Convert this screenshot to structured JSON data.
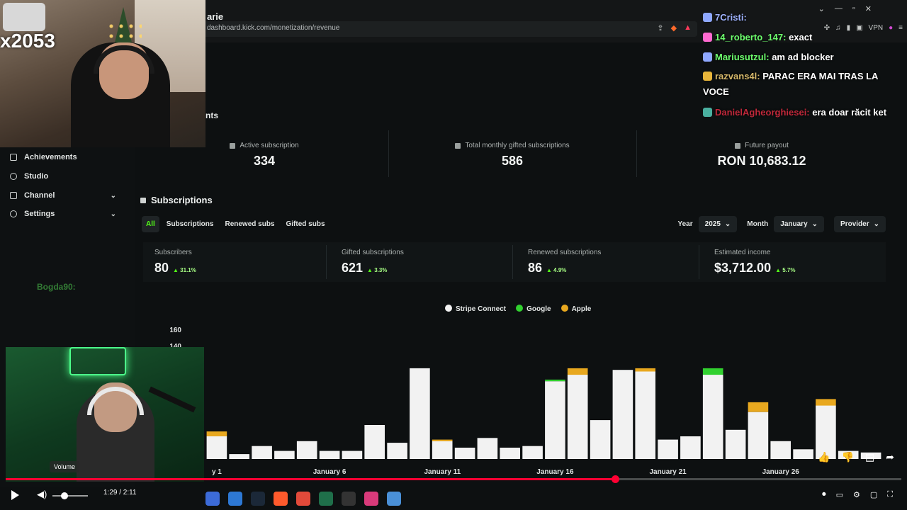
{
  "browser": {
    "url": "dashboard.kick.com/monetization/revenue",
    "page_title_fragment": "arie",
    "section_fragment": "nts",
    "ext_vpn": "VPN"
  },
  "stream": {
    "badge": "x2053"
  },
  "sidebar": {
    "items": [
      {
        "label": "Achievements",
        "icon": "trophy-icon"
      },
      {
        "label": "Studio",
        "icon": "studio-icon"
      },
      {
        "label": "Channel",
        "icon": "channel-icon"
      },
      {
        "label": "Settings",
        "icon": "gear-icon"
      }
    ],
    "faded_chat": [
      "Bogda90:"
    ]
  },
  "stats": [
    {
      "label": "Active subscription",
      "value": "334"
    },
    {
      "label": "Total monthly gifted subscriptions",
      "value": "586"
    },
    {
      "label": "Future payout",
      "value": "RON 10,683.12"
    }
  ],
  "subscriptions": {
    "title": "Subscriptions",
    "tabs": [
      "All",
      "Subscriptions",
      "Renewed subs",
      "Gifted subs"
    ],
    "filters": {
      "year_label": "Year",
      "year_value": "2025",
      "month_label": "Month",
      "month_value": "January",
      "provider_label": "Provider"
    },
    "metrics": [
      {
        "label": "Subscribers",
        "value": "80",
        "change": "31.1%"
      },
      {
        "label": "Gifted subscriptions",
        "value": "621",
        "change": "3.3%"
      },
      {
        "label": "Renewed subscriptions",
        "value": "86",
        "change": "4.9%"
      },
      {
        "label": "Estimated income",
        "value": "$3,712.00",
        "change": "5.7%"
      }
    ]
  },
  "chart_data": {
    "type": "bar",
    "stacked": true,
    "legend": [
      "Stripe Connect",
      "Google",
      "Apple"
    ],
    "colors": {
      "Stripe Connect": "#f2f2f2",
      "Google": "#31d12f",
      "Apple": "#e8a81f"
    },
    "y_ticks": [
      "160",
      "140"
    ],
    "x_tick_labels": [
      "y 1",
      "January 6",
      "January 11",
      "January 16",
      "January 21",
      "January 26"
    ],
    "categories": [
      "Jan 1",
      "Jan 2",
      "Jan 3",
      "Jan 4",
      "Jan 5",
      "Jan 6",
      "Jan 7",
      "Jan 8",
      "Jan 9",
      "Jan 10",
      "Jan 11",
      "Jan 12",
      "Jan 13",
      "Jan 14",
      "Jan 15",
      "Jan 16",
      "Jan 17",
      "Jan 18",
      "Jan 19",
      "Jan 20",
      "Jan 21",
      "Jan 22",
      "Jan 23",
      "Jan 24",
      "Jan 25",
      "Jan 26",
      "Jan 27",
      "Jan 28",
      "Jan 29",
      "Jan 30"
    ],
    "series": [
      {
        "name": "Stripe Connect",
        "values": [
          28,
          6,
          16,
          10,
          22,
          10,
          10,
          42,
          20,
          112,
          22,
          14,
          26,
          14,
          16,
          96,
          104,
          48,
          110,
          108,
          24,
          28,
          104,
          36,
          58,
          22,
          12,
          66,
          10,
          8
        ]
      },
      {
        "name": "Google",
        "values": [
          0,
          0,
          0,
          0,
          0,
          0,
          0,
          0,
          0,
          0,
          0,
          0,
          0,
          0,
          0,
          2,
          0,
          0,
          0,
          0,
          0,
          0,
          8,
          0,
          0,
          0,
          0,
          0,
          0,
          0
        ]
      },
      {
        "name": "Apple",
        "values": [
          6,
          0,
          0,
          0,
          0,
          0,
          0,
          0,
          0,
          0,
          2,
          0,
          0,
          0,
          0,
          0,
          8,
          0,
          0,
          4,
          0,
          0,
          0,
          0,
          12,
          0,
          0,
          8,
          0,
          0
        ]
      }
    ]
  },
  "chat": [
    {
      "user": "7Cristi:",
      "text": "",
      "color": "u-blue"
    },
    {
      "user": "14_roberto_147:",
      "text": "exact",
      "color": "u-green"
    },
    {
      "user": "Mariusutzul:",
      "text": "am ad blocker",
      "color": "u-green"
    },
    {
      "user": "razvans4l:",
      "text": "PARAC ERA MAI TRAS LA VOCE",
      "color": "u-gold"
    },
    {
      "user": "DanielAgheorghiesei:",
      "text": "era doar răcit ket",
      "color": "u-red"
    }
  ],
  "video": {
    "time": "1:29 / 2:11",
    "volume_tooltip": "Volume",
    "progress": 0.68
  }
}
